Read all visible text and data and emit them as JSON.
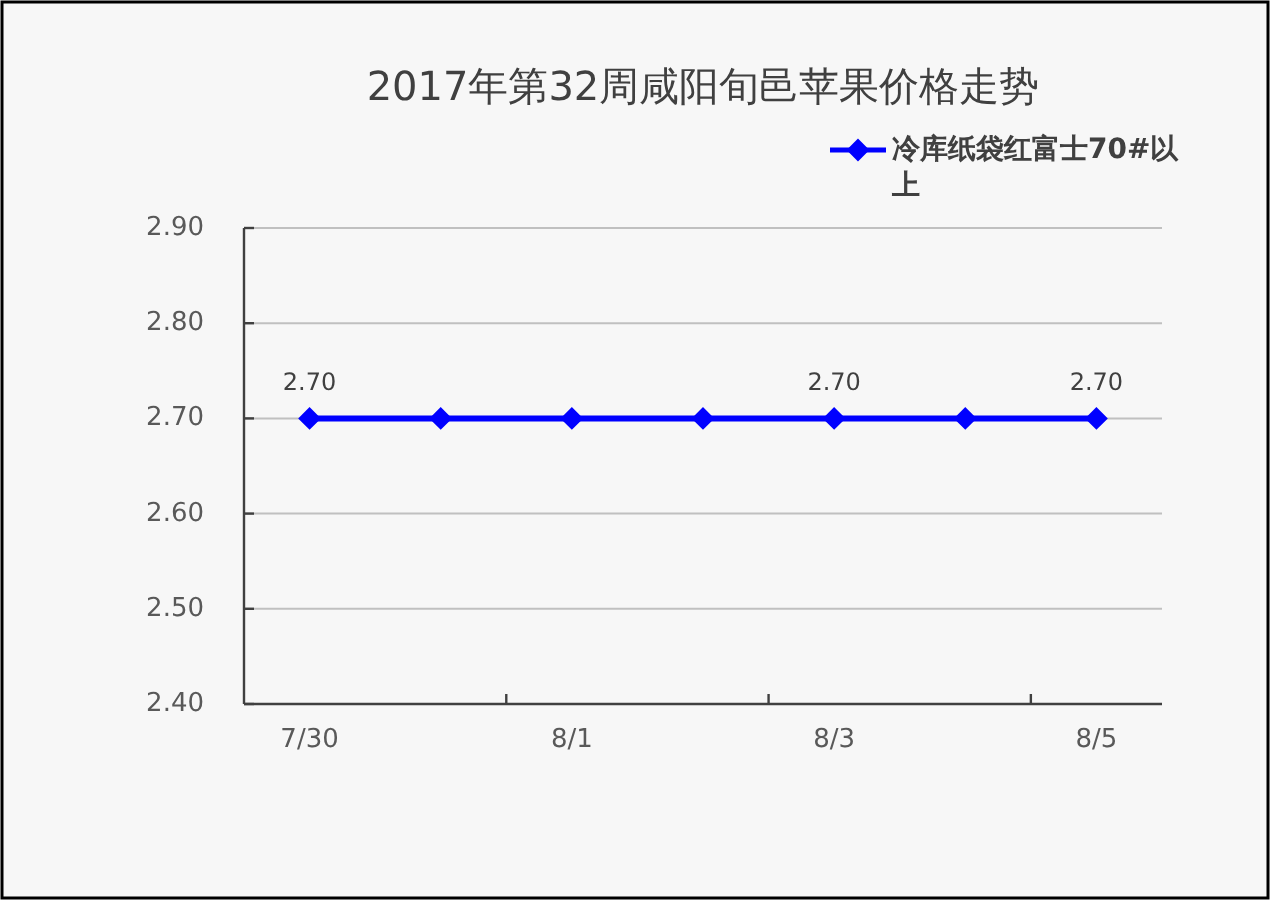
{
  "chart_data": {
    "type": "line",
    "title": "2017年第32周咸阳旬邑苹果价格走势",
    "categories": [
      "7/30",
      null,
      "8/1",
      null,
      "8/3",
      null,
      "8/5"
    ],
    "series": [
      {
        "name": "冷库纸袋红富士70#以上",
        "color": "#0000ff",
        "values": [
          2.7,
          2.7,
          2.7,
          2.7,
          2.7,
          2.7,
          2.7
        ],
        "value_labels": [
          "2.70",
          null,
          null,
          null,
          "2.70",
          null,
          "2.70"
        ]
      }
    ],
    "ylim": [
      2.4,
      2.9
    ],
    "yticks": [
      {
        "value": 2.4,
        "label": "2.40"
      },
      {
        "value": 2.5,
        "label": "2.50"
      },
      {
        "value": 2.6,
        "label": "2.60"
      },
      {
        "value": 2.7,
        "label": "2.70"
      },
      {
        "value": 2.8,
        "label": "2.80"
      },
      {
        "value": 2.9,
        "label": "2.90"
      }
    ],
    "grid": "y",
    "legend": "top right",
    "marker": "diamond",
    "line_style": "solid"
  }
}
